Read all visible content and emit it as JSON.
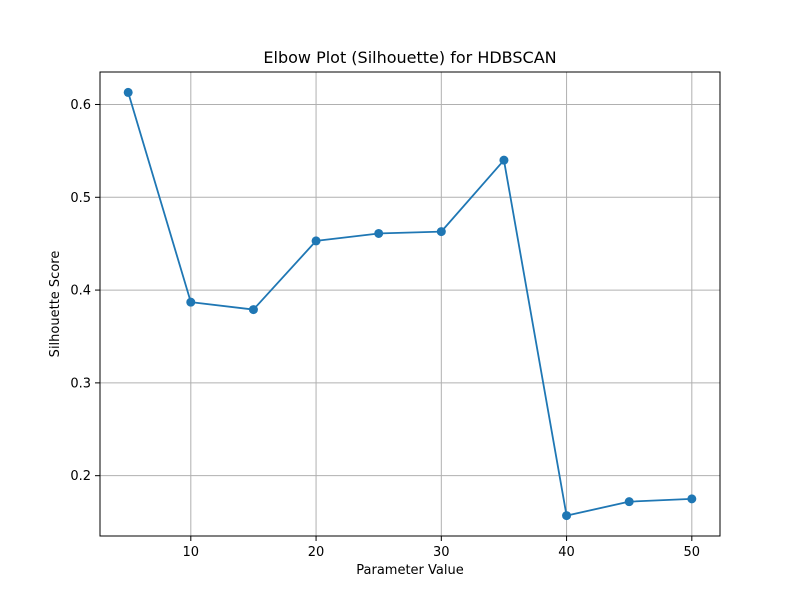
{
  "chart_data": {
    "type": "line",
    "title": "Elbow Plot (Silhouette) for HDBSCAN",
    "xlabel": "Parameter Value",
    "ylabel": "Silhouette Score",
    "x": [
      5,
      10,
      15,
      20,
      25,
      30,
      35,
      40,
      45,
      50
    ],
    "series": [
      {
        "values": [
          0.613,
          0.387,
          0.379,
          0.453,
          0.461,
          0.463,
          0.54,
          0.157,
          0.172,
          0.175
        ],
        "color": "#1f77b4",
        "marker": "circle"
      }
    ],
    "xticks": [
      10,
      20,
      30,
      40,
      50
    ],
    "yticks": [
      0.2,
      0.3,
      0.4,
      0.5,
      0.6
    ],
    "xtick_labels": [
      "10",
      "20",
      "30",
      "40",
      "50"
    ],
    "ytick_labels": [
      "0.2",
      "0.3",
      "0.4",
      "0.5",
      "0.6"
    ],
    "xlim": [
      2.75,
      52.25
    ],
    "ylim": [
      0.135,
      0.635
    ],
    "grid": true,
    "grid_color": "#b0b0b0"
  }
}
